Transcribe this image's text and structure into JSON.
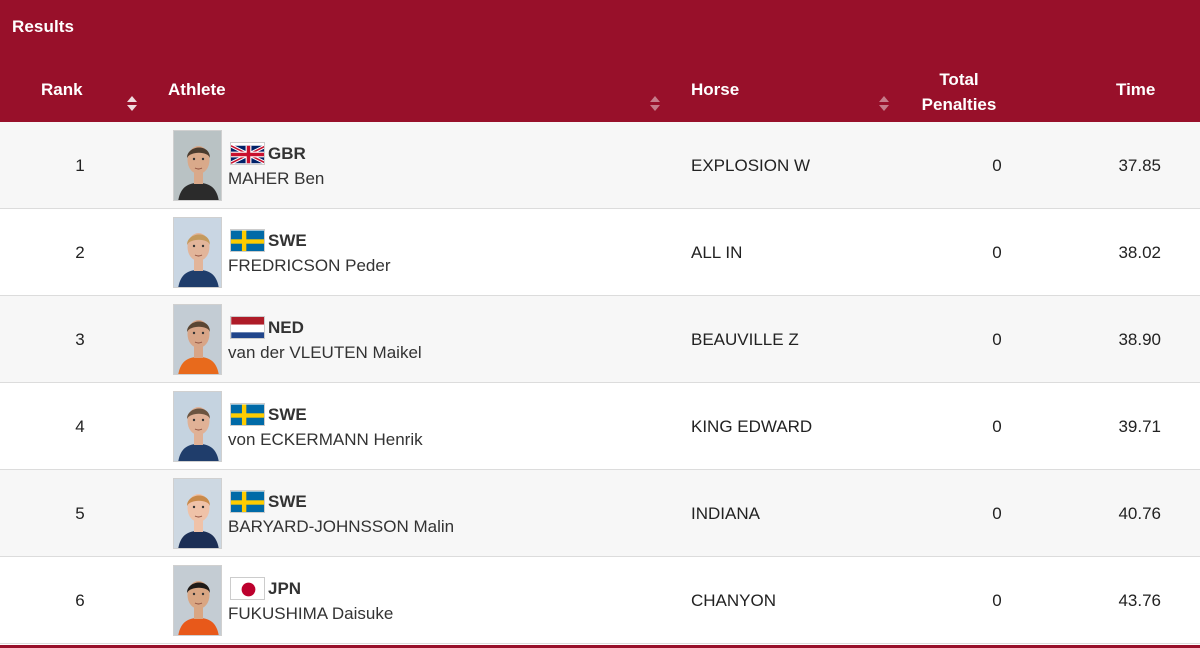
{
  "title": "Results",
  "columns": {
    "rank": "Rank",
    "athlete": "Athlete",
    "horse": "Horse",
    "penalties_line1": "Total",
    "penalties_line2": "Penalties",
    "time": "Time"
  },
  "colors": {
    "header_bg": "#98102a",
    "header_text": "#ffffff",
    "row_alt_bg": "#f7f7f7"
  },
  "rows": [
    {
      "rank": "1",
      "country": "GBR",
      "flag": "gb-flag-icon",
      "name": "MAHER Ben",
      "horse": "EXPLOSION W",
      "penalties": "0",
      "time": "37.85"
    },
    {
      "rank": "2",
      "country": "SWE",
      "flag": "se-flag-icon",
      "name": "FREDRICSON Peder",
      "horse": "ALL IN",
      "penalties": "0",
      "time": "38.02"
    },
    {
      "rank": "3",
      "country": "NED",
      "flag": "nl-flag-icon",
      "name": "van der VLEUTEN Maikel",
      "horse": "BEAUVILLE Z",
      "penalties": "0",
      "time": "38.90"
    },
    {
      "rank": "4",
      "country": "SWE",
      "flag": "se-flag-icon",
      "name": "von ECKERMANN Henrik",
      "horse": "KING EDWARD",
      "penalties": "0",
      "time": "39.71"
    },
    {
      "rank": "5",
      "country": "SWE",
      "flag": "se-flag-icon",
      "name": "BARYARD-JOHNSSON Malin",
      "horse": "INDIANA",
      "penalties": "0",
      "time": "40.76"
    },
    {
      "rank": "6",
      "country": "JPN",
      "flag": "jp-flag-icon",
      "name": "FUKUSHIMA Daisuke",
      "horse": "CHANYON",
      "penalties": "0",
      "time": "43.76"
    }
  ]
}
